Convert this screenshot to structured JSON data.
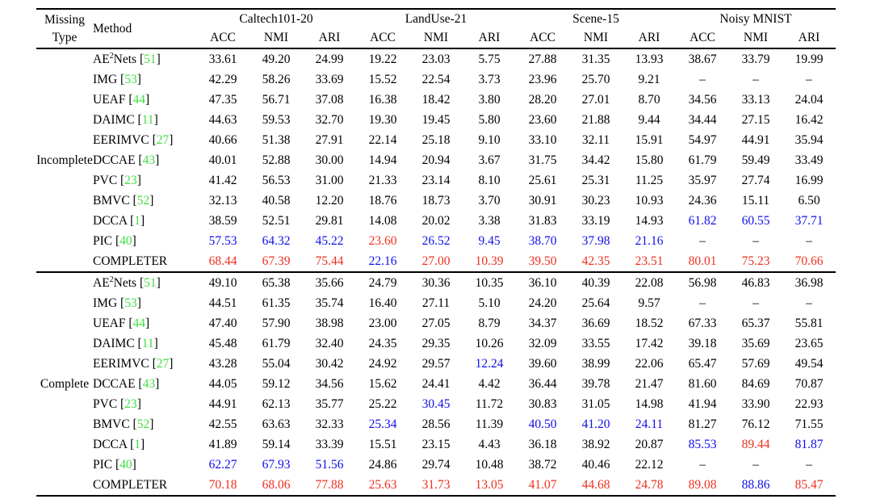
{
  "colors": {
    "best": "#ee2f1f",
    "second": "#0f0fe8",
    "citation": "#41dd41"
  },
  "table": {
    "header": {
      "missing_line1": "Missing",
      "missing_line2": "Type",
      "method": "Method",
      "groups": [
        {
          "name": "Caltech101-20",
          "metrics": [
            "ACC",
            "NMI",
            "ARI"
          ]
        },
        {
          "name": "LandUse-21",
          "metrics": [
            "ACC",
            "NMI",
            "ARI"
          ]
        },
        {
          "name": "Scene-15",
          "metrics": [
            "ACC",
            "NMI",
            "ARI"
          ]
        },
        {
          "name": "Noisy MNIST",
          "metrics": [
            "ACC",
            "NMI",
            "ARI"
          ]
        }
      ]
    },
    "sections": [
      {
        "missing_type": "Incomplete",
        "rows": [
          {
            "method": {
              "base": "AE",
              "sup": "2",
              "rest": "Nets",
              "cite": "51"
            },
            "values": [
              "33.61",
              "49.20",
              "24.99",
              "19.22",
              "23.03",
              "5.75",
              "27.88",
              "31.35",
              "13.93",
              "38.67",
              "33.79",
              "19.99"
            ],
            "colors": "kkkkkkkkkkkk"
          },
          {
            "method": {
              "base": "IMG",
              "cite": "53"
            },
            "values": [
              "42.29",
              "58.26",
              "33.69",
              "15.52",
              "22.54",
              "3.73",
              "23.96",
              "25.70",
              "9.21",
              "–",
              "–",
              "–"
            ],
            "colors": "kkkkkkkkkkkk"
          },
          {
            "method": {
              "base": "UEAF",
              "cite": "44"
            },
            "values": [
              "47.35",
              "56.71",
              "37.08",
              "16.38",
              "18.42",
              "3.80",
              "28.20",
              "27.01",
              "8.70",
              "34.56",
              "33.13",
              "24.04"
            ],
            "colors": "kkkkkkkkkkkk"
          },
          {
            "method": {
              "base": "DAIMC",
              "cite": "11"
            },
            "values": [
              "44.63",
              "59.53",
              "32.70",
              "19.30",
              "19.45",
              "5.80",
              "23.60",
              "21.88",
              "9.44",
              "34.44",
              "27.15",
              "16.42"
            ],
            "colors": "kkkkkkkkkkkk"
          },
          {
            "method": {
              "base": "EERIMVC",
              "cite": "27"
            },
            "values": [
              "40.66",
              "51.38",
              "27.91",
              "22.14",
              "25.18",
              "9.10",
              "33.10",
              "32.11",
              "15.91",
              "54.97",
              "44.91",
              "35.94"
            ],
            "colors": "kkkkkkkkkkkk"
          },
          {
            "method": {
              "base": "DCCAE",
              "cite": "43"
            },
            "values": [
              "40.01",
              "52.88",
              "30.00",
              "14.94",
              "20.94",
              "3.67",
              "31.75",
              "34.42",
              "15.80",
              "61.79",
              "59.49",
              "33.49"
            ],
            "colors": "kkkkkkkkkkkk"
          },
          {
            "method": {
              "base": "PVC",
              "cite": "23"
            },
            "values": [
              "41.42",
              "56.53",
              "31.00",
              "21.33",
              "23.14",
              "8.10",
              "25.61",
              "25.31",
              "11.25",
              "35.97",
              "27.74",
              "16.99"
            ],
            "colors": "kkkkkkkkkkkk"
          },
          {
            "method": {
              "base": "BMVC",
              "cite": "52"
            },
            "values": [
              "32.13",
              "40.58",
              "12.20",
              "18.76",
              "18.73",
              "3.70",
              "30.91",
              "30.23",
              "10.93",
              "24.36",
              "15.11",
              "6.50"
            ],
            "colors": "kkkkkkkkkkkk"
          },
          {
            "method": {
              "base": "DCCA",
              "cite": "1"
            },
            "values": [
              "38.59",
              "52.51",
              "29.81",
              "14.08",
              "20.02",
              "3.38",
              "31.83",
              "33.19",
              "14.93",
              "61.82",
              "60.55",
              "37.71"
            ],
            "colors": "kkkkkkkkkbbb"
          },
          {
            "method": {
              "base": "PIC",
              "cite": "40"
            },
            "values": [
              "57.53",
              "64.32",
              "45.22",
              "23.60",
              "26.52",
              "9.45",
              "38.70",
              "37.98",
              "21.16",
              "–",
              "–",
              "–"
            ],
            "colors": "bbbrbbbbbkkk"
          },
          {
            "method": {
              "base": "COMPLETER"
            },
            "values": [
              "68.44",
              "67.39",
              "75.44",
              "22.16",
              "27.00",
              "10.39",
              "39.50",
              "42.35",
              "23.51",
              "80.01",
              "75.23",
              "70.66"
            ],
            "colors": "rrrbrrrrrrrr"
          }
        ]
      },
      {
        "missing_type": "Complete",
        "rows": [
          {
            "method": {
              "base": "AE",
              "sup": "2",
              "rest": "Nets",
              "cite": "51"
            },
            "values": [
              "49.10",
              "65.38",
              "35.66",
              "24.79",
              "30.36",
              "10.35",
              "36.10",
              "40.39",
              "22.08",
              "56.98",
              "46.83",
              "36.98"
            ],
            "colors": "kkkkkkkkkkkk"
          },
          {
            "method": {
              "base": "IMG",
              "cite": "53"
            },
            "values": [
              "44.51",
              "61.35",
              "35.74",
              "16.40",
              "27.11",
              "5.10",
              "24.20",
              "25.64",
              "9.57",
              "–",
              "–",
              "–"
            ],
            "colors": "kkkkkkkkkkkk"
          },
          {
            "method": {
              "base": "UEAF",
              "cite": "44"
            },
            "values": [
              "47.40",
              "57.90",
              "38.98",
              "23.00",
              "27.05",
              "8.79",
              "34.37",
              "36.69",
              "18.52",
              "67.33",
              "65.37",
              "55.81"
            ],
            "colors": "kkkkkkkkkkkk"
          },
          {
            "method": {
              "base": "DAIMC",
              "cite": "11"
            },
            "values": [
              "45.48",
              "61.79",
              "32.40",
              "24.35",
              "29.35",
              "10.26",
              "32.09",
              "33.55",
              "17.42",
              "39.18",
              "35.69",
              "23.65"
            ],
            "colors": "kkkkkkkkkkkk"
          },
          {
            "method": {
              "base": "EERIMVC",
              "cite": "27"
            },
            "values": [
              "43.28",
              "55.04",
              "30.42",
              "24.92",
              "29.57",
              "12.24",
              "39.60",
              "38.99",
              "22.06",
              "65.47",
              "57.69",
              "49.54"
            ],
            "colors": "kkkkkbkkkkkk"
          },
          {
            "method": {
              "base": "DCCAE",
              "cite": "43"
            },
            "values": [
              "44.05",
              "59.12",
              "34.56",
              "15.62",
              "24.41",
              "4.42",
              "36.44",
              "39.78",
              "21.47",
              "81.60",
              "84.69",
              "70.87"
            ],
            "colors": "kkkkkkkkkkkk"
          },
          {
            "method": {
              "base": "PVC",
              "cite": "23"
            },
            "values": [
              "44.91",
              "62.13",
              "35.77",
              "25.22",
              "30.45",
              "11.72",
              "30.83",
              "31.05",
              "14.98",
              "41.94",
              "33.90",
              "22.93"
            ],
            "colors": "kkkkbkkkkkkk"
          },
          {
            "method": {
              "base": "BMVC",
              "cite": "52"
            },
            "values": [
              "42.55",
              "63.63",
              "32.33",
              "25.34",
              "28.56",
              "11.39",
              "40.50",
              "41.20",
              "24.11",
              "81.27",
              "76.12",
              "71.55"
            ],
            "colors": "kkkbkkbbbkkk"
          },
          {
            "method": {
              "base": "DCCA",
              "cite": "1"
            },
            "values": [
              "41.89",
              "59.14",
              "33.39",
              "15.51",
              "23.15",
              "4.43",
              "36.18",
              "38.92",
              "20.87",
              "85.53",
              "89.44",
              "81.87"
            ],
            "colors": "kkkkkkkkkbrb"
          },
          {
            "method": {
              "base": "PIC",
              "cite": "40"
            },
            "values": [
              "62.27",
              "67.93",
              "51.56",
              "24.86",
              "29.74",
              "10.48",
              "38.72",
              "40.46",
              "22.12",
              "–",
              "–",
              "–"
            ],
            "colors": "bbbkkkkkkkkk"
          },
          {
            "method": {
              "base": "COMPLETER"
            },
            "values": [
              "70.18",
              "68.06",
              "77.88",
              "25.63",
              "31.73",
              "13.05",
              "41.07",
              "44.68",
              "24.78",
              "89.08",
              "88.86",
              "85.47"
            ],
            "colors": "rrrrrrrrrrbr"
          }
        ]
      }
    ]
  }
}
